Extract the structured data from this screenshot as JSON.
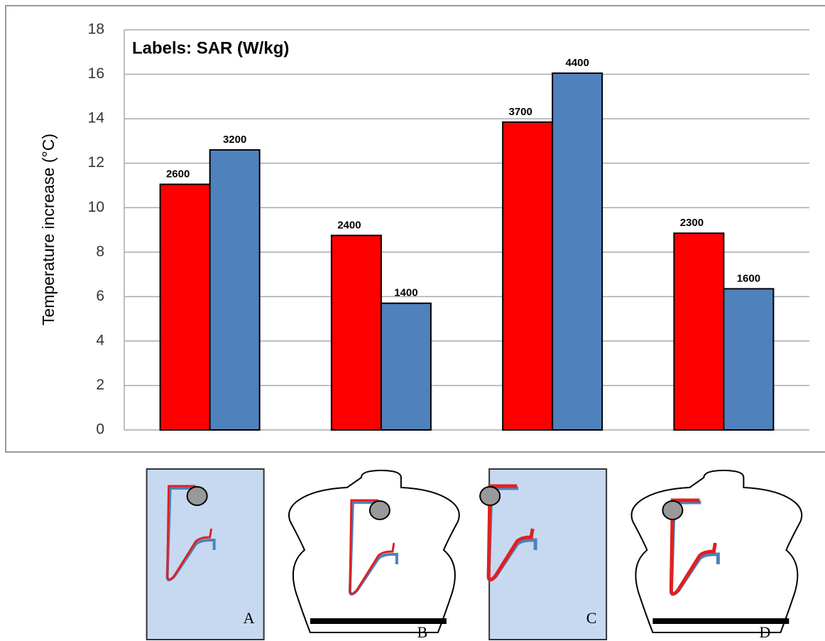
{
  "chart_data": {
    "type": "bar",
    "annotation": "Labels: SAR (W/kg)",
    "y_label": "Temperature increase (°C)",
    "categories": [
      "A",
      "B",
      "C",
      "D"
    ],
    "series": [
      {
        "color": "#ff0000",
        "values": [
          11.05,
          8.75,
          13.85,
          8.85
        ],
        "sar": [
          2600,
          2400,
          3700,
          2300
        ]
      },
      {
        "color": "#4f81bd",
        "values": [
          12.6,
          5.7,
          16.05,
          6.35
        ],
        "sar": [
          3200,
          1400,
          4400,
          1600
        ]
      }
    ],
    "ylim": [
      0,
      18
    ],
    "yticks": [
      0,
      2,
      4,
      6,
      8,
      10,
      12,
      14,
      16,
      18
    ],
    "grid": true
  }
}
